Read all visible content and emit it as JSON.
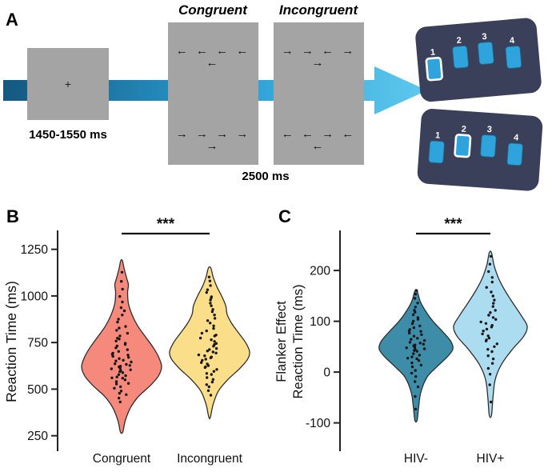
{
  "figure": {
    "panel_a": {
      "label": "A",
      "congruent_header": "Congruent",
      "incongruent_header": "Incongruent",
      "fixation_cross": "+",
      "fixation_duration": "1450-1550 ms",
      "stimulus_duration": "2500 ms",
      "congruent_arrows_top": "← ← ← ← ←",
      "congruent_arrows_bottom": "→ → → → →",
      "incongruent_arrows_top": "→ → ← → →",
      "incongruent_arrows_bottom": "← ← → ← ←",
      "response_pad": {
        "buttons": [
          "1",
          "2",
          "3",
          "4"
        ],
        "top_highlighted_button": "1",
        "bottom_highlighted_button": "2"
      },
      "colors": {
        "screen_gray": "#A4A4A4",
        "arrow_gradient": [
          "#14587F",
          "#2B9FD4",
          "#5FC9EE"
        ],
        "pad_body": "#3A4059",
        "pad_button": "#2FA3DC"
      }
    }
  },
  "chart_data": [
    {
      "type": "violin",
      "panel_label": "B",
      "ylabel_lines": [
        "Reaction Time (ms)"
      ],
      "categories": [
        "Congruent",
        "Incongruent"
      ],
      "yticks": [
        1250,
        1000,
        750,
        500,
        250
      ],
      "ylim": [
        210,
        1300
      ],
      "significance": "***",
      "point_color": "#161616",
      "outline_color": "#2E2E2E",
      "series": [
        {
          "name": "Congruent",
          "color": "#F5897B",
          "profile": [
            [
              270,
              0.03
            ],
            [
              330,
              0.09
            ],
            [
              400,
              0.22
            ],
            [
              460,
              0.42
            ],
            [
              520,
              0.72
            ],
            [
              570,
              0.92
            ],
            [
              620,
              1.0
            ],
            [
              670,
              0.93
            ],
            [
              720,
              0.8
            ],
            [
              780,
              0.6
            ],
            [
              840,
              0.4
            ],
            [
              900,
              0.26
            ],
            [
              960,
              0.17
            ],
            [
              1020,
              0.15
            ],
            [
              1060,
              0.17
            ],
            [
              1100,
              0.12
            ],
            [
              1150,
              0.06
            ],
            [
              1190,
              0.02
            ]
          ],
          "points": [
            434,
            452,
            468,
            480,
            492,
            505,
            515,
            524,
            532,
            540,
            548,
            556,
            562,
            568,
            574,
            580,
            586,
            592,
            598,
            604,
            610,
            615,
            620,
            625,
            630,
            635,
            640,
            645,
            650,
            656,
            662,
            668,
            674,
            680,
            688,
            696,
            704,
            712,
            720,
            728,
            737,
            746,
            756,
            766,
            777,
            788,
            800,
            812,
            826,
            840,
            856,
            874,
            894,
            916,
            940,
            968,
            1000,
            1038,
            1080,
            1128
          ]
        },
        {
          "name": "Incongruent",
          "color": "#FBDE89",
          "profile": [
            [
              350,
              0.02
            ],
            [
              420,
              0.09
            ],
            [
              490,
              0.22
            ],
            [
              550,
              0.45
            ],
            [
              610,
              0.75
            ],
            [
              660,
              0.95
            ],
            [
              700,
              1.0
            ],
            [
              750,
              0.9
            ],
            [
              800,
              0.73
            ],
            [
              850,
              0.56
            ],
            [
              900,
              0.44
            ],
            [
              950,
              0.4
            ],
            [
              1000,
              0.3
            ],
            [
              1050,
              0.18
            ],
            [
              1100,
              0.09
            ],
            [
              1150,
              0.03
            ]
          ],
          "points": [
            470,
            492,
            510,
            526,
            540,
            552,
            564,
            575,
            585,
            595,
            604,
            613,
            621,
            629,
            637,
            645,
            652,
            659,
            666,
            673,
            680,
            687,
            694,
            701,
            708,
            715,
            722,
            730,
            738,
            746,
            754,
            763,
            772,
            782,
            792,
            803,
            814,
            826,
            838,
            851,
            865,
            880,
            896,
            913,
            931,
            950,
            962,
            975,
            988,
            1000,
            1015,
            1032,
            1052,
            1076,
            1104
          ]
        }
      ]
    },
    {
      "type": "violin",
      "panel_label": "C",
      "ylabel_lines": [
        "Flanker Effect",
        "Reaction Time (ms)"
      ],
      "categories": [
        "HIV-",
        "HIV+"
      ],
      "yticks": [
        200,
        100,
        0,
        -100
      ],
      "ylim": [
        -140,
        260
      ],
      "significance": "***",
      "point_color": "#161616",
      "outline_color": "#2E2E2E",
      "series": [
        {
          "name": "HIV-",
          "color": "#3D8CA8",
          "profile": [
            [
              -95,
              0.03
            ],
            [
              -70,
              0.07
            ],
            [
              -40,
              0.13
            ],
            [
              -10,
              0.3
            ],
            [
              10,
              0.56
            ],
            [
              30,
              0.85
            ],
            [
              45,
              1.0
            ],
            [
              60,
              0.95
            ],
            [
              80,
              0.72
            ],
            [
              100,
              0.46
            ],
            [
              120,
              0.26
            ],
            [
              140,
              0.11
            ],
            [
              160,
              0.03
            ]
          ],
          "points": [
            -72,
            -48,
            -30,
            -18,
            -8,
            -2,
            4,
            9,
            14,
            18,
            22,
            25,
            28,
            31,
            34,
            37,
            40,
            42,
            44,
            46,
            48,
            50,
            52,
            54,
            56,
            58,
            60,
            62,
            64,
            67,
            70,
            73,
            76,
            79,
            82,
            85,
            88,
            91,
            95,
            99,
            103,
            107,
            112,
            117,
            123,
            129,
            136,
            144,
            153,
            162
          ]
        },
        {
          "name": "HIV+",
          "color": "#ABDCEF",
          "profile": [
            [
              -85,
              0.03
            ],
            [
              -50,
              0.07
            ],
            [
              -15,
              0.13
            ],
            [
              15,
              0.3
            ],
            [
              45,
              0.6
            ],
            [
              70,
              0.9
            ],
            [
              90,
              1.0
            ],
            [
              110,
              0.85
            ],
            [
              135,
              0.62
            ],
            [
              160,
              0.4
            ],
            [
              185,
              0.22
            ],
            [
              210,
              0.1
            ],
            [
              235,
              0.03
            ]
          ],
          "points": [
            -58,
            -25,
            -5,
            8,
            18,
            26,
            33,
            39,
            45,
            50,
            55,
            60,
            64,
            68,
            72,
            76,
            80,
            84,
            88,
            92,
            96,
            100,
            104,
            108,
            113,
            118,
            123,
            129,
            135,
            142,
            149,
            157,
            166,
            176,
            187,
            199,
            213,
            228
          ]
        }
      ]
    }
  ]
}
